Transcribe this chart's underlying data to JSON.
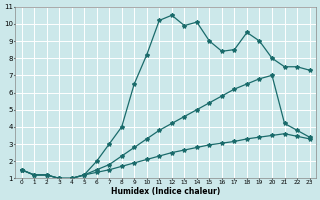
{
  "xlabel": "Humidex (Indice chaleur)",
  "bg_color": "#cce8ea",
  "grid_color": "#ffffff",
  "line_color": "#1a6b6b",
  "xlim": [
    -0.5,
    23.5
  ],
  "ylim": [
    1,
    11
  ],
  "xticks": [
    0,
    1,
    2,
    3,
    4,
    5,
    6,
    7,
    8,
    9,
    10,
    11,
    12,
    13,
    14,
    15,
    16,
    17,
    18,
    19,
    20,
    21,
    22,
    23
  ],
  "yticks": [
    1,
    2,
    3,
    4,
    5,
    6,
    7,
    8,
    9,
    10,
    11
  ],
  "line1_x": [
    0,
    1,
    2,
    3,
    4,
    5,
    6,
    7,
    8,
    9,
    10,
    11,
    12,
    13,
    14,
    15,
    16,
    17,
    18,
    19,
    20,
    21,
    22,
    23
  ],
  "line1_y": [
    1.5,
    1.2,
    1.2,
    1.0,
    1.0,
    1.2,
    2.0,
    3.0,
    4.0,
    6.5,
    8.2,
    10.2,
    10.5,
    9.9,
    10.1,
    9.0,
    8.4,
    8.5,
    9.5,
    9.0,
    8.0,
    7.5,
    7.5,
    7.3
  ],
  "line2_x": [
    0,
    1,
    2,
    3,
    4,
    5,
    6,
    7,
    8,
    9,
    10,
    11,
    12,
    13,
    14,
    15,
    16,
    17,
    18,
    19,
    20,
    21,
    22,
    23
  ],
  "line2_y": [
    1.5,
    1.2,
    1.2,
    1.0,
    1.0,
    1.2,
    1.5,
    1.8,
    2.3,
    2.8,
    3.3,
    3.8,
    4.2,
    4.6,
    5.0,
    5.4,
    5.8,
    6.2,
    6.5,
    6.8,
    7.0,
    4.2,
    3.8,
    3.4
  ],
  "line3_x": [
    0,
    1,
    2,
    3,
    4,
    5,
    6,
    7,
    8,
    9,
    10,
    11,
    12,
    13,
    14,
    15,
    16,
    17,
    18,
    19,
    20,
    21,
    22,
    23
  ],
  "line3_y": [
    1.5,
    1.2,
    1.2,
    1.0,
    1.0,
    1.2,
    1.35,
    1.5,
    1.7,
    1.9,
    2.1,
    2.3,
    2.5,
    2.65,
    2.8,
    2.95,
    3.05,
    3.15,
    3.3,
    3.4,
    3.5,
    3.6,
    3.45,
    3.3
  ]
}
